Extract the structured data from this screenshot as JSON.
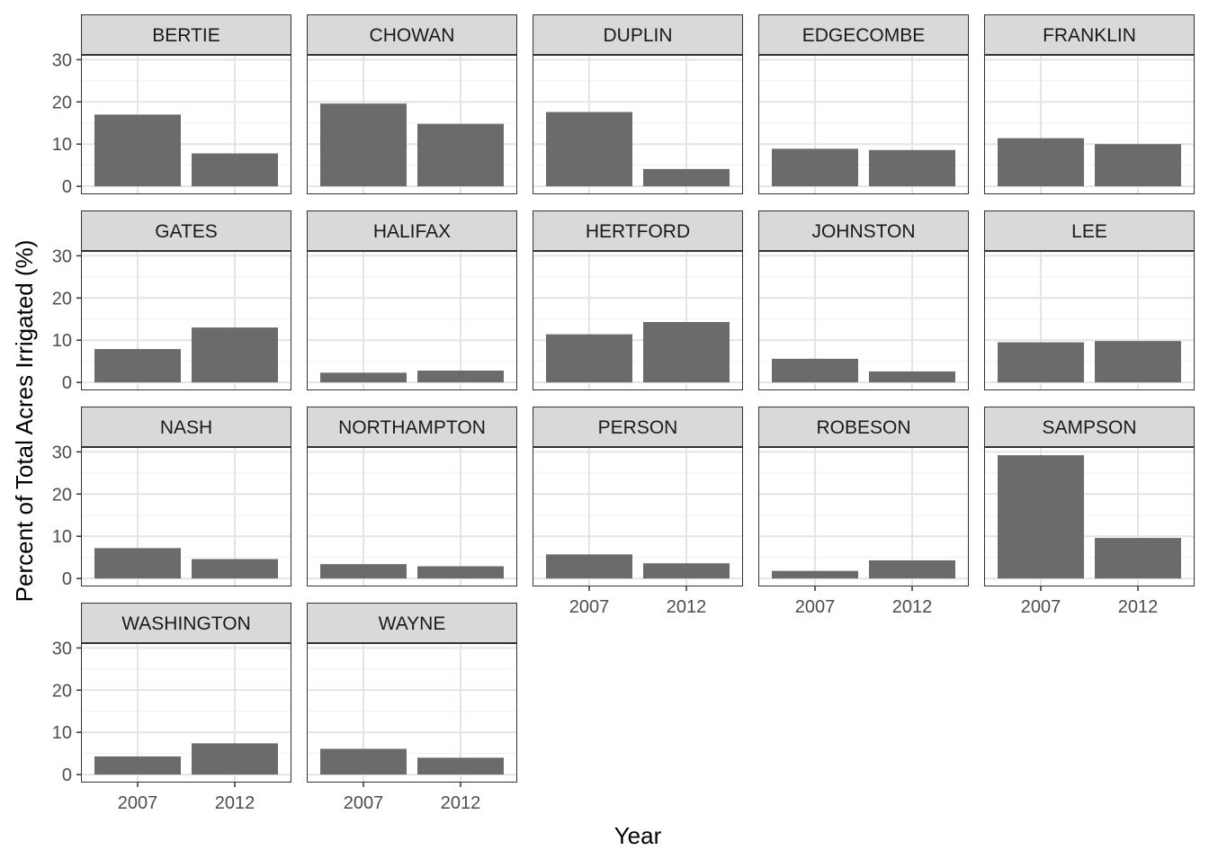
{
  "chart_data": {
    "type": "bar",
    "facet_layout": "facet_wrap",
    "columns": 5,
    "xlabel": "Year",
    "ylabel": "Percent of Total Acres Irrigated (%)",
    "categories": [
      "2007",
      "2012"
    ],
    "ylim": [
      0,
      30
    ],
    "yticks": [
      0,
      10,
      20,
      30
    ],
    "grid": true,
    "bar_color": "#6b6b6b",
    "strip_color": "#d9d9d9",
    "facets": [
      {
        "name": "BERTIE",
        "values": [
          17.0,
          7.8
        ]
      },
      {
        "name": "CHOWAN",
        "values": [
          19.6,
          14.8
        ]
      },
      {
        "name": "DUPLIN",
        "values": [
          17.6,
          4.1
        ]
      },
      {
        "name": "EDGECOMBE",
        "values": [
          8.9,
          8.6
        ]
      },
      {
        "name": "FRANKLIN",
        "values": [
          11.4,
          10.0
        ]
      },
      {
        "name": "GATES",
        "values": [
          7.9,
          13.0
        ]
      },
      {
        "name": "HALIFAX",
        "values": [
          2.3,
          2.8
        ]
      },
      {
        "name": "HERTFORD",
        "values": [
          11.4,
          14.3
        ]
      },
      {
        "name": "JOHNSTON",
        "values": [
          5.6,
          2.6
        ]
      },
      {
        "name": "LEE",
        "values": [
          9.5,
          9.8
        ]
      },
      {
        "name": "NASH",
        "values": [
          7.2,
          4.6
        ]
      },
      {
        "name": "NORTHAMPTON",
        "values": [
          3.4,
          2.9
        ]
      },
      {
        "name": "PERSON",
        "values": [
          5.7,
          3.6
        ]
      },
      {
        "name": "ROBESON",
        "values": [
          1.8,
          4.3
        ]
      },
      {
        "name": "SAMPSON",
        "values": [
          29.2,
          9.6
        ]
      },
      {
        "name": "WASHINGTON",
        "values": [
          4.3,
          7.4
        ]
      },
      {
        "name": "WAYNE",
        "values": [
          6.1,
          4.0
        ]
      }
    ]
  }
}
